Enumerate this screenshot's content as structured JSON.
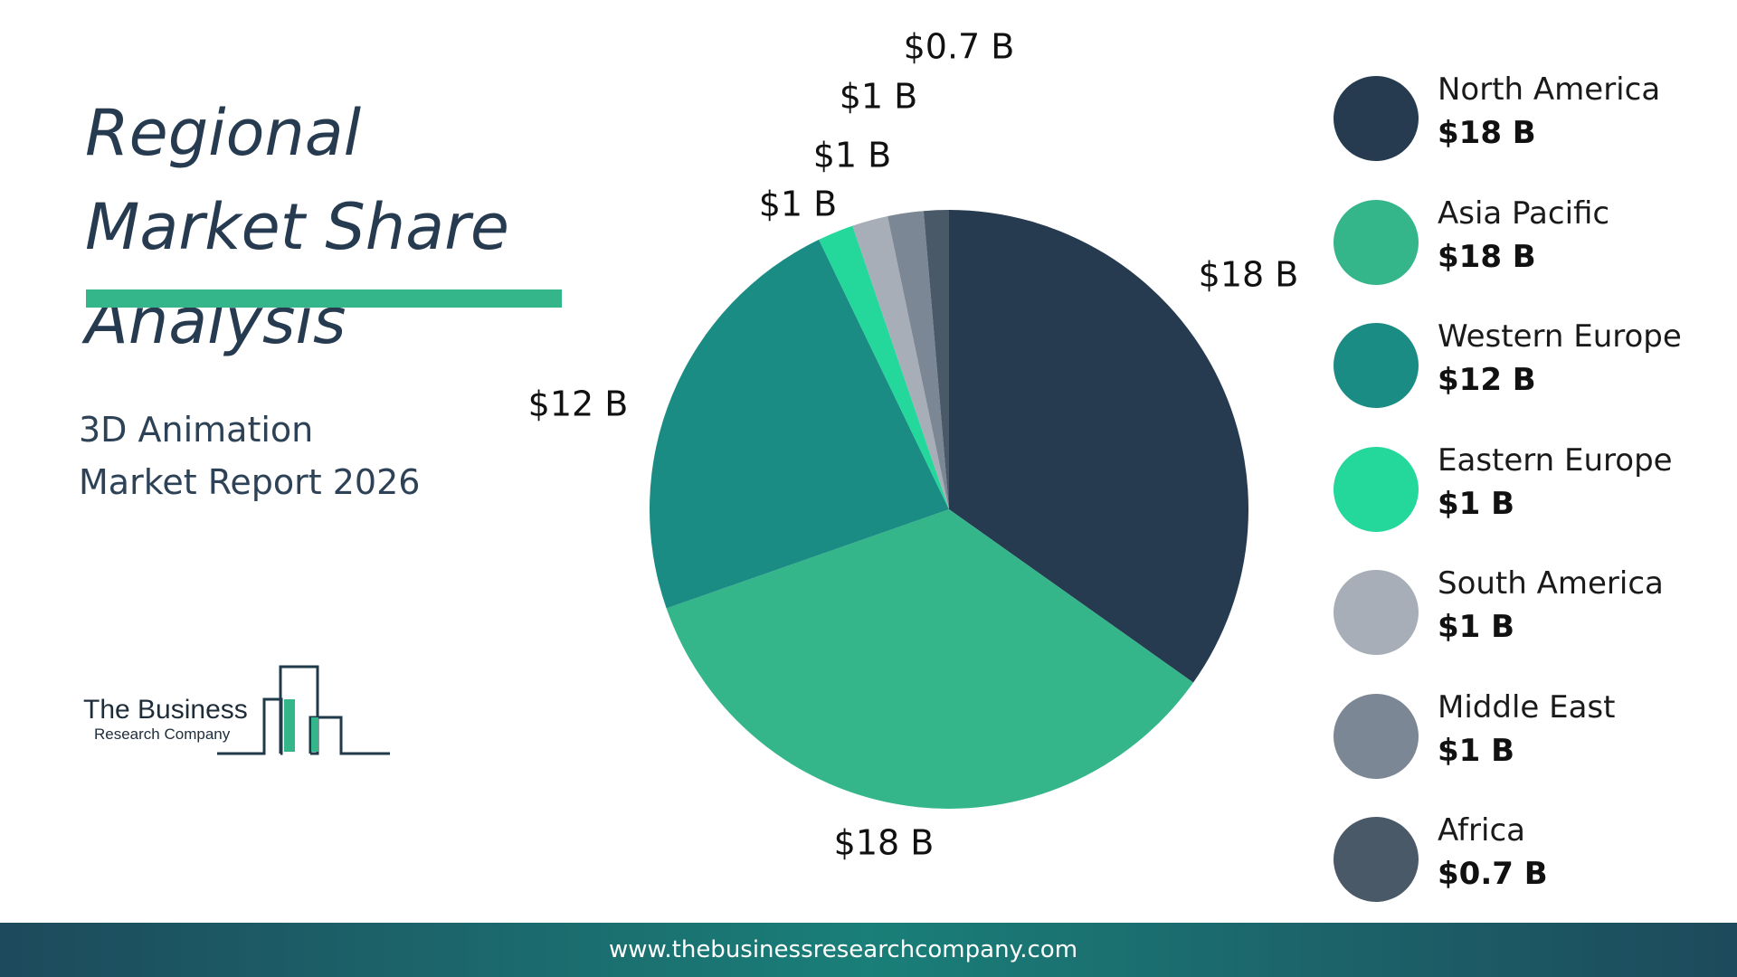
{
  "title": "Regional Market Share Analysis",
  "subtitle": "3D Animation Market Report 2026",
  "logo": {
    "line1": "The Business",
    "line2": "Research Company"
  },
  "footer": "www.thebusinessresearchcompany.com",
  "chart_data": {
    "type": "pie",
    "categories": [
      "North America",
      "Asia Pacific",
      "Western Europe",
      "Eastern Europe",
      "South America",
      "Middle East",
      "Africa"
    ],
    "values": [
      18,
      18,
      12,
      1,
      1,
      1,
      0.7
    ],
    "value_labels": [
      "$18 B",
      "$18 B",
      "$12 B",
      "$1 B",
      "$1 B",
      "$1 B",
      "$0.7 B"
    ],
    "colors": [
      "#263a50",
      "#34b68a",
      "#1b8c84",
      "#23d89a",
      "#a8aeb7",
      "#7b8794",
      "#4a5968"
    ]
  }
}
